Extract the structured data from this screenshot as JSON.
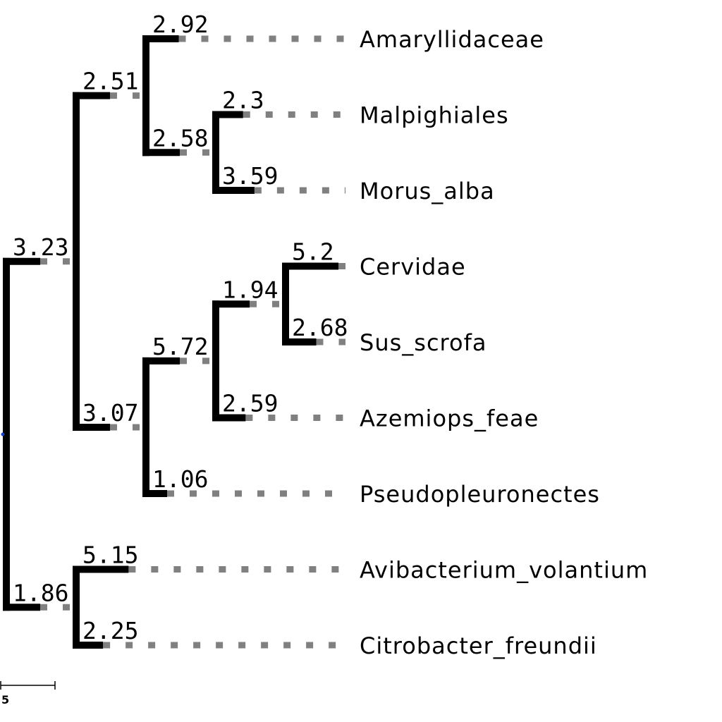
{
  "tree": {
    "id": "root",
    "length": 0,
    "children": [
      {
        "id": "cladeA",
        "length": 3.23,
        "children": [
          {
            "id": "cladeA1",
            "length": 2.51,
            "children": [
              {
                "id": "tip-amaryllidaceae",
                "name": "Amaryllidaceae",
                "length": 2.92
              },
              {
                "id": "cladeA1b",
                "length": 2.58,
                "children": [
                  {
                    "id": "tip-malpighiales",
                    "name": "Malpighiales",
                    "length": 2.3
                  },
                  {
                    "id": "tip-morus-alba",
                    "name": "Morus_alba",
                    "length": 3.59
                  }
                ]
              }
            ]
          },
          {
            "id": "cladeA2",
            "length": 3.07,
            "children": [
              {
                "id": "cladeA2a",
                "length": 5.72,
                "children": [
                  {
                    "id": "cladeA2a1",
                    "length": 1.94,
                    "children": [
                      {
                        "id": "tip-cervidae",
                        "name": "Cervidae",
                        "length": 5.2
                      },
                      {
                        "id": "tip-sus-scrofa",
                        "name": "Sus_scrofa",
                        "length": 2.68
                      }
                    ]
                  },
                  {
                    "id": "tip-azemiops-feae",
                    "name": "Azemiops_feae",
                    "length": 2.59
                  }
                ]
              },
              {
                "id": "tip-pseudopleuronectes",
                "name": "Pseudopleuronectes",
                "length": 1.06
              }
            ]
          }
        ]
      },
      {
        "id": "cladeB",
        "length": 1.86,
        "children": [
          {
            "id": "tip-avibacterium-volantium",
            "name": "Avibacterium_volantium",
            "length": 5.15
          },
          {
            "id": "tip-citrobacter-freundii",
            "name": "Citrobacter_freundii",
            "length": 2.25
          }
        ]
      }
    ]
  },
  "scale_bar": {
    "value": 5,
    "label": "5"
  },
  "colors": {
    "branch": "#000000",
    "guide": "#808080",
    "root_dot": "#1f3fbf"
  }
}
